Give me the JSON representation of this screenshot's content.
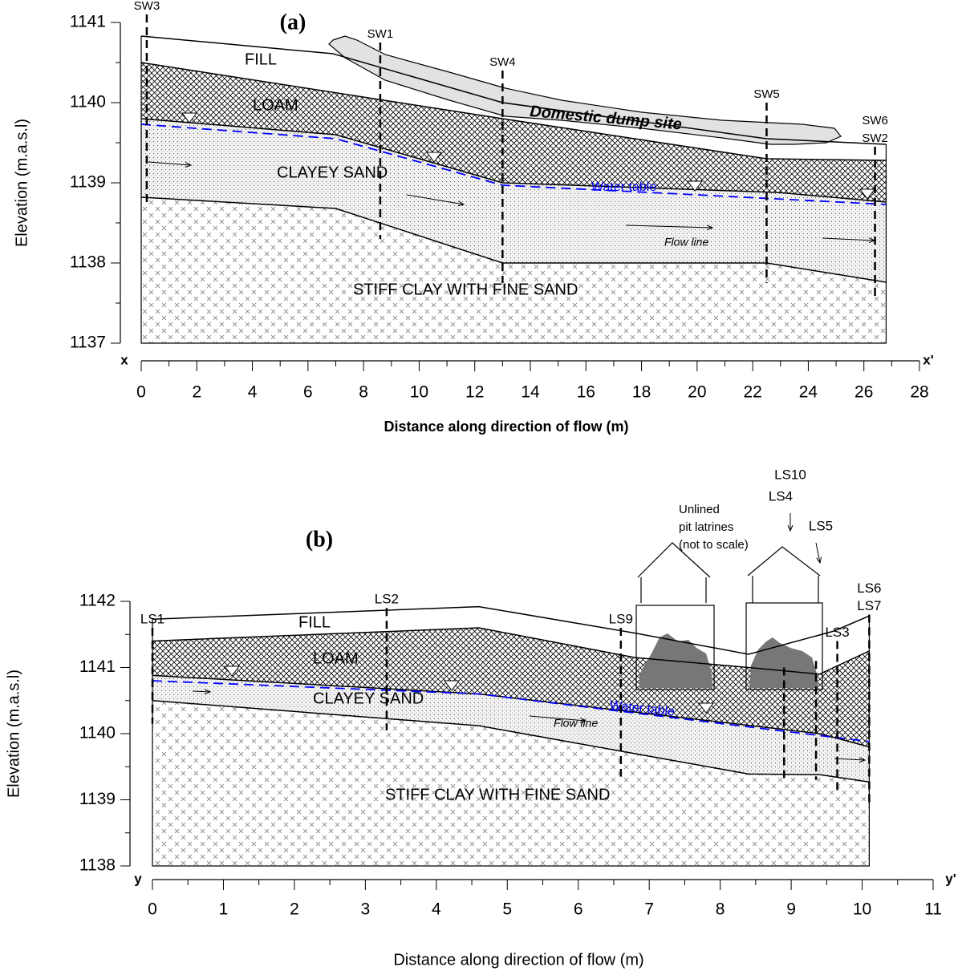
{
  "chart_data": [
    {
      "type": "cross-section",
      "title": "(a)",
      "xlabel": "Distance along direction of flow (m)",
      "ylabel": "Elevation (m.a.s.l)",
      "axis_end_labels": [
        "x",
        "x'"
      ],
      "xlim": [
        0,
        28
      ],
      "ylim": [
        1137,
        1141
      ],
      "xticks": [
        0,
        2,
        4,
        6,
        8,
        10,
        12,
        14,
        16,
        18,
        20,
        22,
        24,
        26,
        28
      ],
      "yticks": [
        1137,
        1138,
        1139,
        1140,
        1141
      ],
      "boundaries": [
        {
          "x": [
            0,
            6.9,
            13,
            22.5,
            26.8
          ],
          "values": [
            1140.83,
            1140.61,
            1140.0,
            1139.55,
            1139.48
          ]
        },
        {
          "x": [
            0,
            13,
            22.5,
            26.8
          ],
          "values": [
            1140.5,
            1139.8,
            1139.3,
            1139.28
          ]
        },
        {
          "x": [
            0,
            7,
            13,
            22.9,
            26.8
          ],
          "values": [
            1139.8,
            1139.6,
            1139.0,
            1138.88,
            1138.76
          ]
        },
        {
          "x": [
            0,
            7,
            13,
            22.5,
            26.8
          ],
          "values": [
            1138.82,
            1138.68,
            1138.0,
            1138.0,
            1137.76
          ]
        }
      ],
      "layer_labels": [
        "FILL",
        "LOAM",
        "CLAYEY SAND",
        "STIFF CLAY WITH FINE SAND"
      ],
      "water_table": {
        "label": "Water table",
        "color": "#0000ff",
        "x": [
          0,
          7,
          13,
          20,
          26.8
        ],
        "values": [
          1139.73,
          1139.55,
          1138.97,
          1138.85,
          1138.73
        ]
      },
      "flow_label": "Flow line",
      "site_label": [
        "Domestic dump site"
      ],
      "boreholes": [
        {
          "labels": [
            "SW3"
          ],
          "x": 0.2,
          "top": 1141.1,
          "bottom": 1138.7
        },
        {
          "labels": [
            "SW1"
          ],
          "x": 8.6,
          "top": 1140.75,
          "bottom": 1138.3
        },
        {
          "labels": [
            "SW4"
          ],
          "x": 13.0,
          "top": 1140.4,
          "bottom": 1137.75
        },
        {
          "labels": [
            "SW5"
          ],
          "x": 22.5,
          "top": 1140.0,
          "bottom": 1137.75
        },
        {
          "labels": [
            "SW6",
            "SW2"
          ],
          "x": 26.4,
          "top": 1139.45,
          "bottom": 1137.55
        }
      ]
    },
    {
      "type": "cross-section",
      "title": "(b)",
      "xlabel": "Distance along direction of flow (m)",
      "ylabel": "Elevation (m.a.s.l)",
      "axis_end_labels": [
        "y",
        "y'"
      ],
      "xlim": [
        0,
        11
      ],
      "ylim": [
        1138,
        1142
      ],
      "xticks": [
        0,
        1,
        2,
        3,
        4,
        5,
        6,
        7,
        8,
        9,
        10,
        11
      ],
      "yticks": [
        1138,
        1139,
        1140,
        1141,
        1142
      ],
      "boundaries": [
        {
          "x": [
            0,
            4.6,
            6.8,
            8.4,
            9.6,
            10.1
          ],
          "values": [
            1141.73,
            1141.92,
            1141.52,
            1141.2,
            1141.55,
            1141.78
          ]
        },
        {
          "x": [
            0,
            4.6,
            6.8,
            8.4,
            9.4,
            10.1
          ],
          "values": [
            1141.4,
            1141.6,
            1141.15,
            1141.0,
            1140.9,
            1141.25
          ]
        },
        {
          "x": [
            0,
            4.6,
            9.4,
            10.1
          ],
          "values": [
            1140.88,
            1140.6,
            1140.0,
            1139.8
          ]
        },
        {
          "x": [
            0,
            4.6,
            8.4,
            9.4,
            10.1
          ],
          "values": [
            1140.5,
            1140.12,
            1139.39,
            1139.38,
            1139.27
          ]
        }
      ],
      "layer_labels": [
        "FILL",
        "LOAM",
        "CLAYEY SAND",
        "STIFF CLAY WITH FINE SAND"
      ],
      "water_table": {
        "label": "Water table",
        "color": "#0000ff",
        "x": [
          0,
          4.6,
          10.1
        ],
        "values": [
          1140.8,
          1140.6,
          1139.88
        ]
      },
      "flow_label": "Flow line",
      "site_label": [
        "Unlined",
        "pit latrines",
        "(not to scale)"
      ],
      "boreholes": [
        {
          "labels": [
            "LS1"
          ],
          "x": 0.0,
          "top": 1141.6,
          "bottom": 1140.15
        },
        {
          "labels": [
            "LS2"
          ],
          "x": 3.3,
          "top": 1141.9,
          "bottom": 1140.05
        },
        {
          "labels": [
            "LS9"
          ],
          "x": 6.6,
          "top": 1141.6,
          "bottom": 1139.35
        },
        {
          "labels": [
            "LS10",
            "LS4"
          ],
          "x": 8.9,
          "top": 1141.0,
          "bottom": 1139.27
        },
        {
          "labels": [
            "LS5"
          ],
          "x": 9.35,
          "top": 1141.1,
          "bottom": 1139.3
        },
        {
          "labels": [
            "LS3"
          ],
          "x": 9.65,
          "top": 1141.4,
          "bottom": 1139.1
        },
        {
          "labels": [
            "LS6",
            "LS7"
          ],
          "x": 10.1,
          "top": 1141.8,
          "bottom": 1138.95
        }
      ]
    }
  ]
}
